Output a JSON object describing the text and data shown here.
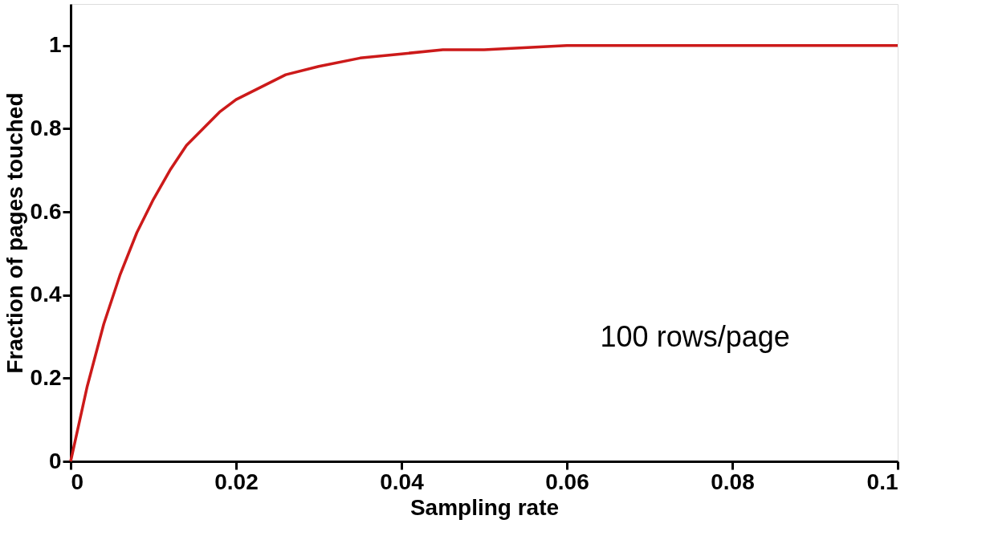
{
  "chart_data": {
    "type": "line",
    "xlabel": "Sampling rate",
    "ylabel": "Fraction of pages touched",
    "annotations": [
      "100 rows/page"
    ],
    "x": [
      0,
      0.002,
      0.004,
      0.006,
      0.008,
      0.01,
      0.012,
      0.014,
      0.016,
      0.018,
      0.02,
      0.023,
      0.026,
      0.03,
      0.035,
      0.04,
      0.045,
      0.05,
      0.06,
      0.07,
      0.08,
      0.09,
      0.1
    ],
    "series": [
      {
        "color": "#cc1a1a",
        "values": [
          0,
          0.18,
          0.33,
          0.45,
          0.55,
          0.63,
          0.7,
          0.76,
          0.8,
          0.84,
          0.87,
          0.9,
          0.93,
          0.95,
          0.97,
          0.98,
          0.99,
          0.99,
          1.0,
          1.0,
          1.0,
          1.0,
          1.0
        ]
      }
    ],
    "xlim": [
      0,
      0.1
    ],
    "ylim": [
      0,
      1.1
    ],
    "xticks": [
      0,
      0.02,
      0.04,
      0.06,
      0.08,
      0.1
    ],
    "yticks": [
      0,
      0.2,
      0.4,
      0.6,
      0.8,
      1
    ],
    "grid": false,
    "marker": "none",
    "line_style": "solid"
  }
}
